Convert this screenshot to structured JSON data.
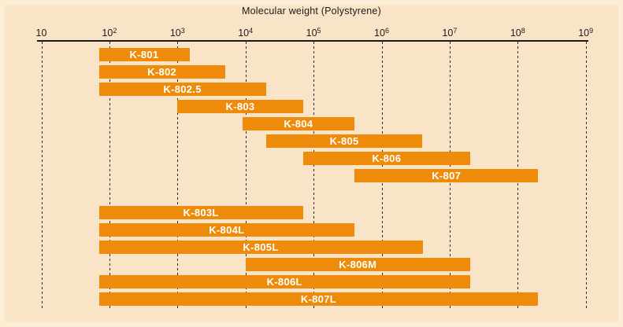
{
  "header": {
    "title": "Molecular weight (Polystyrene)"
  },
  "chart_data": {
    "type": "bar",
    "subtype": "horizontal-range-bars",
    "title": "Molecular weight (Polystyrene)",
    "x_scale": "log10",
    "xlim": [
      10,
      1000000000
    ],
    "grid": "vertical-dashed",
    "legend": "none",
    "x_ticks": [
      {
        "base": "10",
        "sup": "",
        "exp": 1
      },
      {
        "base": "10",
        "sup": "2",
        "exp": 2
      },
      {
        "base": "10",
        "sup": "3",
        "exp": 3
      },
      {
        "base": "10",
        "sup": "4",
        "exp": 4
      },
      {
        "base": "10",
        "sup": "5",
        "exp": 5
      },
      {
        "base": "10",
        "sup": "6",
        "exp": 6
      },
      {
        "base": "10",
        "sup": "7",
        "exp": 7
      },
      {
        "base": "10",
        "sup": "8",
        "exp": 8
      },
      {
        "base": "10",
        "sup": "9",
        "exp": 9
      }
    ],
    "series": [
      {
        "label": "K-801",
        "group": "standard",
        "mw_min": 70,
        "mw_max": 1500
      },
      {
        "label": "K-802",
        "group": "standard",
        "mw_min": 70,
        "mw_max": 5000
      },
      {
        "label": "K-802.5",
        "group": "standard",
        "mw_min": 70,
        "mw_max": 20000
      },
      {
        "label": "K-803",
        "group": "standard",
        "mw_min": 1000,
        "mw_max": 70000
      },
      {
        "label": "K-804",
        "group": "standard",
        "mw_min": 9000,
        "mw_max": 400000
      },
      {
        "label": "K-805",
        "group": "standard",
        "mw_min": 20000,
        "mw_max": 4000000
      },
      {
        "label": "K-806",
        "group": "standard",
        "mw_min": 70000,
        "mw_max": 20000000
      },
      {
        "label": "K-807",
        "group": "standard",
        "mw_min": 400000,
        "mw_max": 200000000
      },
      {
        "label": "K-803L",
        "group": "l-series",
        "mw_min": 70,
        "mw_max": 70000
      },
      {
        "label": "K-804L",
        "group": "l-series",
        "mw_min": 70,
        "mw_max": 400000
      },
      {
        "label": "K-805L",
        "group": "l-series",
        "mw_min": 70,
        "mw_max": 4000000
      },
      {
        "label": "K-806M",
        "group": "l-series",
        "mw_min": 10000,
        "mw_max": 20000000
      },
      {
        "label": "K-806L",
        "group": "l-series",
        "mw_min": 70,
        "mw_max": 20000000
      },
      {
        "label": "K-807L",
        "group": "l-series",
        "mw_min": 70,
        "mw_max": 200000000
      }
    ],
    "colors": {
      "bar": "#ef8b0a",
      "bar_label": "#ffffff",
      "background": "#fae4c8",
      "edge_frame": "#fcf0dc",
      "axis_text": "#1b1b1b",
      "gridline": "#2b2b2b"
    }
  }
}
